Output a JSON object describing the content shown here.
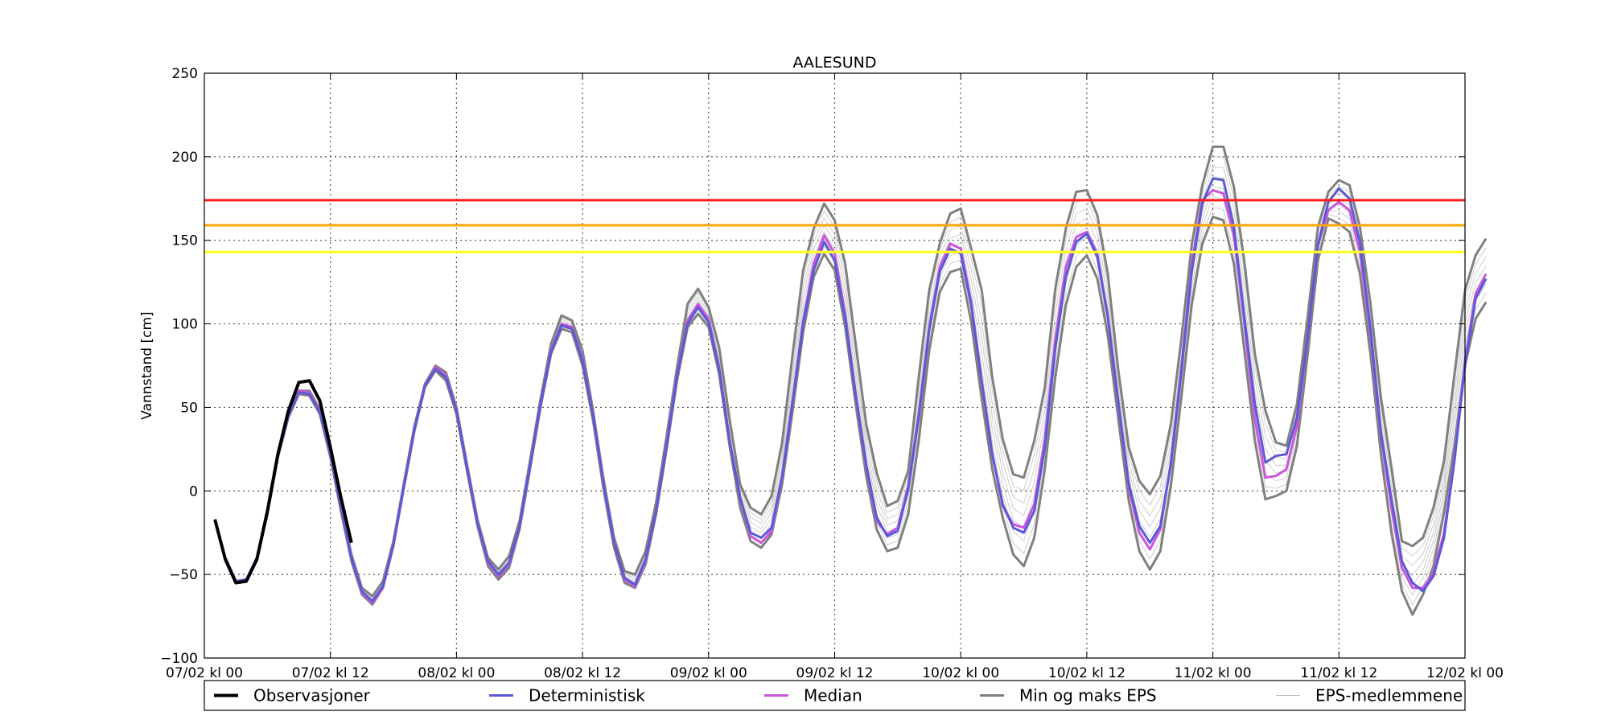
{
  "chart_data": {
    "type": "line",
    "title": "AALESUND",
    "ylabel": "Vannstand [cm]",
    "xlabel": "",
    "ylim": [
      -100,
      250
    ],
    "xlim_hours": [
      0,
      120
    ],
    "x_ticks": [
      {
        "hours": 0,
        "label": "07/02 kl 00"
      },
      {
        "hours": 12,
        "label": "07/02 kl 12"
      },
      {
        "hours": 24,
        "label": "08/02 kl 00"
      },
      {
        "hours": 36,
        "label": "08/02 kl 12"
      },
      {
        "hours": 48,
        "label": "09/02 kl 00"
      },
      {
        "hours": 60,
        "label": "09/02 kl 12"
      },
      {
        "hours": 72,
        "label": "10/02 kl 00"
      },
      {
        "hours": 84,
        "label": "10/02 kl 12"
      },
      {
        "hours": 96,
        "label": "11/02 kl 00"
      },
      {
        "hours": 108,
        "label": "11/02 kl 12"
      },
      {
        "hours": 120,
        "label": "12/02 kl 00"
      }
    ],
    "y_ticks": [
      -100,
      -50,
      0,
      50,
      100,
      150,
      200,
      250
    ],
    "grid": true,
    "legend_position": "bottom",
    "thresholds": [
      {
        "value": 174,
        "color": "#ff1a1a"
      },
      {
        "value": 159,
        "color": "#ffa500"
      },
      {
        "value": 143,
        "color": "#ffff1a"
      }
    ],
    "series": [
      {
        "name": "Observasjoner",
        "color": "#000000",
        "x_hours": [
          1,
          2,
          3,
          4,
          5,
          6,
          7,
          8,
          9,
          10,
          11,
          12,
          13,
          14
        ],
        "values": [
          -17,
          -41,
          -55,
          -54,
          -41,
          -12,
          22,
          48,
          65,
          66,
          54,
          26,
          -4,
          -31
        ]
      },
      {
        "name": "Deterministisk",
        "color": "#5a5ad6",
        "x_start_hours": 2,
        "values": [
          -40,
          -54,
          -53,
          -40,
          -13,
          21,
          45,
          59,
          58,
          47,
          22,
          -10,
          -40,
          -60,
          -66,
          -57,
          -32,
          3,
          37,
          63,
          73,
          68,
          48,
          14,
          -19,
          -42,
          -50,
          -43,
          -21,
          15,
          52,
          83,
          99,
          97,
          78,
          45,
          4,
          -31,
          -52,
          -56,
          -41,
          -12,
          27,
          69,
          100,
          110,
          101,
          73,
          30,
          -4,
          -25,
          -28,
          -22,
          9,
          54,
          100,
          132,
          149,
          138,
          103,
          58,
          16,
          -16,
          -27,
          -24,
          1,
          44,
          96,
          131,
          145,
          142,
          111,
          65,
          22,
          -8,
          -22,
          -25,
          -12,
          26,
          85,
          128,
          149,
          154,
          140,
          104,
          53,
          4,
          -21,
          -31,
          -21,
          16,
          71,
          132,
          172,
          187,
          186,
          158,
          104,
          52,
          17,
          21,
          22,
          44,
          91,
          147,
          173,
          181,
          175,
          149,
          97,
          35,
          -5,
          -42,
          -55,
          -60,
          -51,
          -28,
          18,
          75,
          115,
          127
        ]
      },
      {
        "name": "Median",
        "color": "#cc55dd",
        "x_start_hours": 2,
        "values": [
          -40,
          -54,
          -53,
          -40,
          -13,
          21,
          46,
          60,
          59,
          48,
          22,
          -10,
          -40,
          -61,
          -67,
          -58,
          -32,
          3,
          37,
          63,
          74,
          69,
          48,
          14,
          -19,
          -43,
          -51,
          -44,
          -21,
          15,
          52,
          84,
          100,
          98,
          79,
          45,
          4,
          -31,
          -53,
          -57,
          -42,
          -12,
          28,
          70,
          102,
          112,
          103,
          74,
          30,
          -4,
          -27,
          -31,
          -24,
          8,
          54,
          102,
          136,
          153,
          142,
          106,
          58,
          15,
          -18,
          -26,
          -22,
          3,
          46,
          98,
          134,
          148,
          145,
          113,
          66,
          22,
          -9,
          -20,
          -22,
          -8,
          31,
          90,
          134,
          152,
          155,
          142,
          105,
          53,
          2,
          -25,
          -35,
          -23,
          17,
          74,
          136,
          174,
          180,
          178,
          153,
          100,
          43,
          8,
          9,
          13,
          39,
          90,
          147,
          168,
          173,
          168,
          143,
          93,
          33,
          -10,
          -46,
          -58,
          -58,
          -49,
          -25,
          20,
          78,
          118,
          130
        ]
      },
      {
        "name": "Min og maks EPS",
        "color": "#808080",
        "x_start_hours": 2,
        "min_values": [
          -40,
          -54,
          -54,
          -41,
          -14,
          20,
          44,
          58,
          57,
          46,
          20,
          -12,
          -42,
          -62,
          -68,
          -58,
          -33,
          2,
          36,
          62,
          72,
          66,
          46,
          12,
          -21,
          -45,
          -53,
          -46,
          -23,
          13,
          50,
          82,
          97,
          95,
          75,
          42,
          1,
          -34,
          -55,
          -58,
          -44,
          -14,
          25,
          66,
          98,
          106,
          98,
          70,
          27,
          -10,
          -30,
          -34,
          -26,
          4,
          48,
          95,
          128,
          142,
          132,
          98,
          52,
          9,
          -23,
          -36,
          -34,
          -14,
          30,
          84,
          119,
          131,
          133,
          101,
          55,
          13,
          -16,
          -38,
          -45,
          -28,
          13,
          68,
          111,
          134,
          141,
          127,
          93,
          43,
          -6,
          -36,
          -47,
          -36,
          3,
          56,
          112,
          148,
          164,
          162,
          136,
          84,
          30,
          -5,
          -3,
          0,
          27,
          80,
          138,
          163,
          160,
          155,
          130,
          82,
          22,
          -25,
          -60,
          -74,
          -62,
          -45,
          -13,
          27,
          75,
          103,
          113
        ],
        "max_values": [
          -40,
          -54,
          -53,
          -40,
          -12,
          22,
          46,
          60,
          60,
          49,
          24,
          -8,
          -38,
          -58,
          -63,
          -54,
          -30,
          5,
          39,
          64,
          75,
          71,
          50,
          16,
          -17,
          -40,
          -47,
          -39,
          -18,
          18,
          55,
          88,
          105,
          102,
          84,
          48,
          7,
          -28,
          -48,
          -50,
          -36,
          -7,
          33,
          74,
          112,
          121,
          110,
          86,
          43,
          4,
          -10,
          -14,
          -3,
          29,
          82,
          132,
          157,
          172,
          162,
          136,
          88,
          40,
          11,
          -9,
          -6,
          12,
          68,
          120,
          148,
          166,
          169,
          145,
          120,
          68,
          31,
          10,
          8,
          30,
          62,
          121,
          157,
          179,
          180,
          165,
          130,
          72,
          26,
          6,
          -2,
          9,
          40,
          91,
          148,
          183,
          206,
          206,
          182,
          137,
          82,
          48,
          29,
          27,
          52,
          103,
          158,
          179,
          186,
          183,
          158,
          112,
          56,
          14,
          -30,
          -33,
          -28,
          -10,
          18,
          70,
          120,
          141,
          151
        ]
      },
      {
        "name": "EPS-medlemmene",
        "color": "#bdbdbd",
        "member_count": 6
      }
    ]
  }
}
